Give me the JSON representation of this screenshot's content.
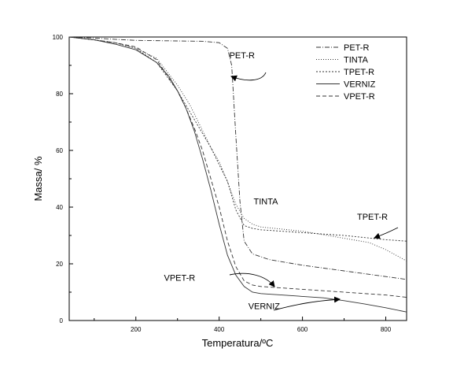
{
  "chart_data": {
    "type": "line",
    "xlabel": "Temperatura/ºC",
    "ylabel": "Massa/ %",
    "xlim": [
      40,
      850
    ],
    "ylim": [
      0,
      100
    ],
    "x_ticks": [
      200,
      400,
      600,
      800
    ],
    "y_ticks": [
      0,
      20,
      40,
      60,
      80,
      100
    ],
    "legend_position": "top-right",
    "series": [
      {
        "name": "PET-R",
        "dash": "6,2,1,2",
        "x": [
          40,
          100,
          150,
          200,
          300,
          360,
          400,
          420,
          430,
          440,
          450,
          460,
          480,
          520,
          600,
          700,
          800,
          850
        ],
        "y": [
          100,
          99.6,
          99.2,
          98.8,
          98.6,
          98.5,
          98.0,
          96.0,
          90.0,
          65.0,
          42.0,
          28.0,
          23.5,
          21.5,
          19.5,
          17.5,
          15.5,
          14.5
        ]
      },
      {
        "name": "TINTA",
        "dash": "1,2",
        "x": [
          40,
          100,
          150,
          200,
          250,
          300,
          330,
          350,
          380,
          400,
          420,
          440,
          460,
          480,
          500,
          600,
          700,
          760,
          800,
          850
        ],
        "y": [
          100,
          99,
          98,
          96,
          92.5,
          83,
          76,
          70,
          61,
          56,
          49,
          41,
          36,
          34,
          33,
          31.5,
          29,
          27.5,
          25,
          21
        ]
      },
      {
        "name": "TPET-R",
        "dash": "2,2",
        "x": [
          40,
          100,
          150,
          200,
          250,
          300,
          340,
          380,
          420,
          440,
          460,
          480,
          500,
          600,
          700,
          800,
          850
        ],
        "y": [
          100,
          99,
          98,
          96,
          91,
          81,
          71,
          61,
          49,
          39,
          33.5,
          32.5,
          32,
          31,
          30,
          28.5,
          28
        ]
      },
      {
        "name": "VERNIZ",
        "dash": "",
        "x": [
          40,
          100,
          150,
          200,
          250,
          280,
          300,
          320,
          340,
          360,
          380,
          400,
          420,
          440,
          460,
          480,
          500,
          550,
          600,
          650,
          700,
          750,
          800,
          850
        ],
        "y": [
          100,
          99,
          97.5,
          95.5,
          91,
          86,
          81,
          75,
          67,
          57,
          46,
          34,
          23,
          16,
          12,
          10,
          9.5,
          9,
          8.5,
          8,
          7,
          5.8,
          4.5,
          3
        ]
      },
      {
        "name": "VPET-R",
        "dash": "5,3",
        "x": [
          40,
          100,
          150,
          200,
          250,
          300,
          320,
          340,
          360,
          380,
          400,
          420,
          440,
          460,
          480,
          500,
          600,
          700,
          800,
          850
        ],
        "y": [
          100,
          99,
          98,
          96.5,
          92,
          81,
          75,
          68,
          60,
          50,
          40,
          28,
          19,
          14,
          12.5,
          12,
          11,
          10,
          9,
          8.2
        ]
      }
    ],
    "annotations": [
      {
        "text": "PET-R",
        "x": 455,
        "y": 92.5
      },
      {
        "text": "TINTA",
        "x": 512,
        "y": 41
      },
      {
        "text": "TPET-R",
        "x": 768,
        "y": 35.5
      },
      {
        "text": "VPET-R",
        "x": 305,
        "y": 14
      },
      {
        "text": "VERNIZ",
        "x": 508,
        "y": 4
      }
    ]
  }
}
